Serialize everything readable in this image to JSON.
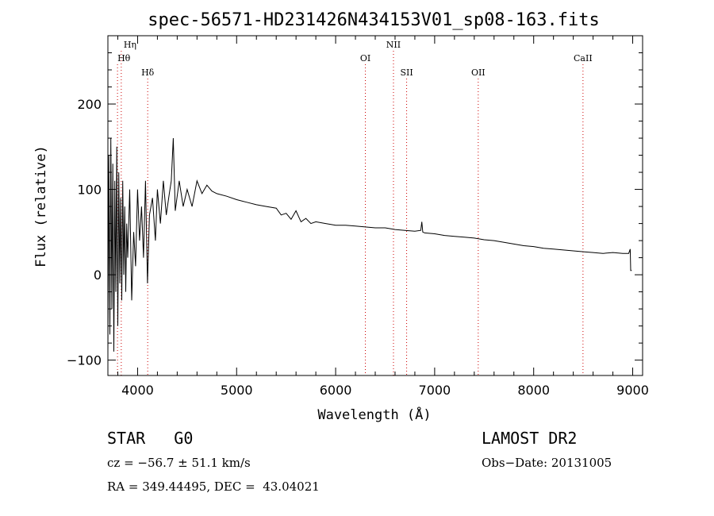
{
  "chart_data": {
    "type": "line",
    "title": "spec-56571-HD231426N434153V01_sp08-163.fits",
    "xlabel": "Wavelength (Å)",
    "ylabel": "Flux (relative)",
    "xlim": [
      3700,
      9100
    ],
    "ylim": [
      -118,
      280
    ],
    "xticks": [
      4000,
      5000,
      6000,
      7000,
      8000,
      9000
    ],
    "yticks": [
      -100,
      0,
      100,
      200
    ],
    "grid": false,
    "series": [
      {
        "x": [
          3700,
          3710,
          3720,
          3730,
          3740,
          3750,
          3760,
          3770,
          3780,
          3790,
          3800,
          3810,
          3820,
          3830,
          3840,
          3850,
          3860,
          3870,
          3880,
          3890,
          3900,
          3920,
          3940,
          3960,
          3980,
          4000,
          4020,
          4040,
          4060,
          4080,
          4100,
          4120,
          4150,
          4180,
          4200,
          4230,
          4260,
          4290,
          4320,
          4340,
          4360,
          4380,
          4420,
          4460,
          4500,
          4550,
          4600,
          4650,
          4700,
          4750,
          4800,
          4900,
          5000,
          5100,
          5200,
          5300,
          5400,
          5450,
          5500,
          5550,
          5600,
          5650,
          5700,
          5750,
          5800,
          5900,
          6000,
          6100,
          6200,
          6300,
          6400,
          6500,
          6600,
          6700,
          6800,
          6860,
          6870,
          6880,
          6900,
          7000,
          7100,
          7200,
          7300,
          7400,
          7500,
          7600,
          7700,
          7800,
          7900,
          8000,
          8100,
          8200,
          8300,
          8400,
          8500,
          8600,
          8700,
          8800,
          8900,
          8960,
          8975,
          8980,
          8990
        ],
        "y": [
          -90,
          140,
          -70,
          160,
          -40,
          130,
          -90,
          110,
          -20,
          150,
          -60,
          120,
          -10,
          90,
          -30,
          110,
          0,
          80,
          -20,
          60,
          20,
          100,
          -30,
          50,
          10,
          100,
          40,
          80,
          20,
          110,
          -10,
          70,
          90,
          40,
          100,
          60,
          110,
          70,
          95,
          110,
          160,
          75,
          110,
          80,
          100,
          80,
          110,
          95,
          105,
          98,
          95,
          92,
          88,
          85,
          82,
          80,
          78,
          70,
          72,
          65,
          75,
          62,
          66,
          60,
          62,
          60,
          58,
          58,
          57,
          56,
          55,
          55,
          53,
          52,
          51,
          52,
          62,
          50,
          49,
          48,
          46,
          45,
          44,
          43,
          41,
          40,
          38,
          36,
          34,
          33,
          31,
          30,
          29,
          28,
          27,
          26,
          25,
          26,
          25,
          25,
          30,
          5,
          5
        ]
      }
    ],
    "lines": [
      {
        "label": "Hη",
        "x": 3835,
        "row": 0
      },
      {
        "label": "Hθ",
        "x": 3797,
        "row": 1
      },
      {
        "label": "Hδ",
        "x": 4102,
        "row": 2
      },
      {
        "label": "OI",
        "x": 6300,
        "row": 1
      },
      {
        "label": "NII",
        "x": 6584,
        "row": 0
      },
      {
        "label": "SII",
        "x": 6717,
        "row": 2
      },
      {
        "label": "OII",
        "x": 7440,
        "row": 2
      },
      {
        "label": "CaII",
        "x": 8498,
        "row": 1
      }
    ]
  },
  "info": {
    "object": "STAR   G0",
    "survey": "LAMOST DR2",
    "cz": "cz = −56.7 ± 51.1 km/s",
    "obs_date": "Obs−Date: 20131005",
    "radec": "RA = 349.44495, DEC =  43.04021"
  },
  "colors": {
    "spectrum": "#000000",
    "line_marker": "#cc0000",
    "axes": "#000000"
  }
}
